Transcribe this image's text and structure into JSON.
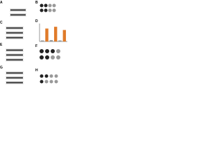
{
  "panels": [
    {
      "label": "A"
    },
    {
      "label": "B"
    },
    {
      "label": "C"
    },
    {
      "label": "D",
      "chart": {
        "type": "bar",
        "values": [
          0.3,
          3.6,
          0.4,
          4.1,
          0.3,
          3.2
        ],
        "colors": [
          "#999999",
          "#e07b2a",
          "#999999",
          "#e07b2a",
          "#999999",
          "#e07b2a"
        ],
        "ylim": [
          0,
          5
        ]
      }
    },
    {
      "label": "E"
    },
    {
      "label": "F"
    },
    {
      "label": "G"
    },
    {
      "label": "H"
    }
  ]
}
